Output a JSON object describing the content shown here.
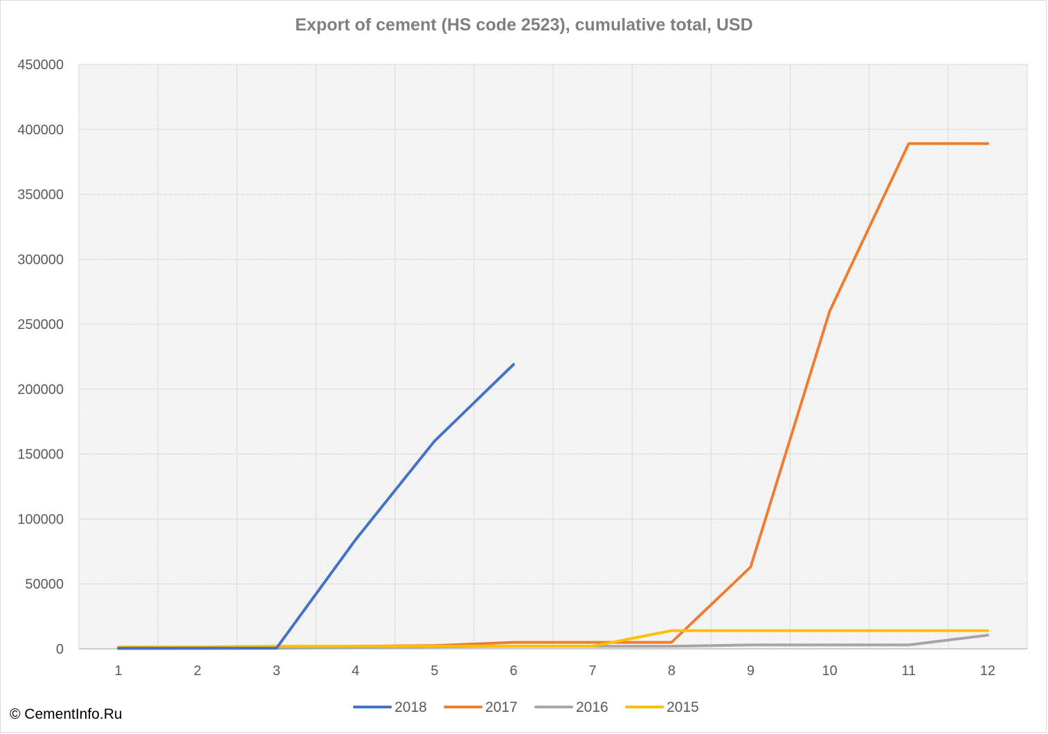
{
  "chart_data": {
    "type": "line",
    "title": "Export of cement (HS code 2523), cumulative total, USD",
    "xlabel": "",
    "ylabel": "",
    "x": [
      1,
      2,
      3,
      4,
      5,
      6,
      7,
      8,
      9,
      10,
      11,
      12
    ],
    "ylim": [
      0,
      450000
    ],
    "yticks": [
      0,
      50000,
      100000,
      150000,
      200000,
      250000,
      300000,
      350000,
      400000,
      450000
    ],
    "grid": true,
    "legend_position": "bottom",
    "series": [
      {
        "name": "2018",
        "color": "#4472c4",
        "values": [
          500,
          500,
          500,
          84000,
          160000,
          219000,
          null,
          null,
          null,
          null,
          null,
          null
        ]
      },
      {
        "name": "2017",
        "color": "#ed7d31",
        "values": [
          500,
          800,
          1000,
          2000,
          2500,
          5000,
          5000,
          5000,
          63000,
          260000,
          389000,
          389000
        ]
      },
      {
        "name": "2016",
        "color": "#a5a5a5",
        "values": [
          200,
          300,
          500,
          1000,
          1500,
          2000,
          2000,
          2000,
          3000,
          3000,
          3000,
          10500
        ]
      },
      {
        "name": "2015",
        "color": "#ffc000",
        "values": [
          1500,
          1500,
          2000,
          2000,
          2000,
          2000,
          2000,
          14000,
          14000,
          14000,
          14000,
          14000
        ]
      }
    ]
  },
  "footer": {
    "copyright": "© CementInfo.Ru"
  }
}
